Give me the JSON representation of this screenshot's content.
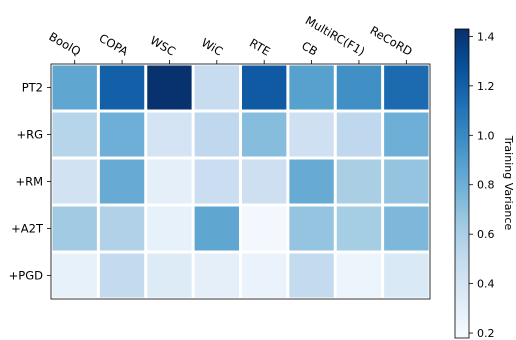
{
  "chart_data": {
    "type": "heatmap",
    "columns": [
      "BoolQ",
      "COPA",
      "WSC",
      "WiC",
      "RTE",
      "CB",
      "MultiRC(F1)",
      "ReCoRD"
    ],
    "rows": [
      "PT2",
      "+RG",
      "+RM",
      "+A2T",
      "+PGD"
    ],
    "values": [
      [
        0.85,
        1.2,
        1.42,
        0.48,
        1.23,
        0.88,
        0.97,
        1.15
      ],
      [
        0.55,
        0.8,
        0.4,
        0.52,
        0.72,
        0.44,
        0.52,
        0.8
      ],
      [
        0.42,
        0.82,
        0.3,
        0.46,
        0.45,
        0.82,
        0.6,
        0.68
      ],
      [
        0.64,
        0.58,
        0.28,
        0.85,
        0.21,
        0.68,
        0.62,
        0.75
      ],
      [
        0.28,
        0.5,
        0.34,
        0.3,
        0.26,
        0.5,
        0.24,
        0.36
      ]
    ],
    "colorbar": {
      "label": "Training Variance",
      "min": 0.18,
      "max": 1.43,
      "ticks": [
        0.2,
        0.4,
        0.6,
        0.8,
        1.0,
        1.2,
        1.4
      ],
      "tick_labels": [
        "0.2",
        "0.4",
        "0.6",
        "0.8",
        "1.0",
        "1.2",
        "1.4"
      ],
      "colormap": "Blues"
    },
    "grid": false
  }
}
